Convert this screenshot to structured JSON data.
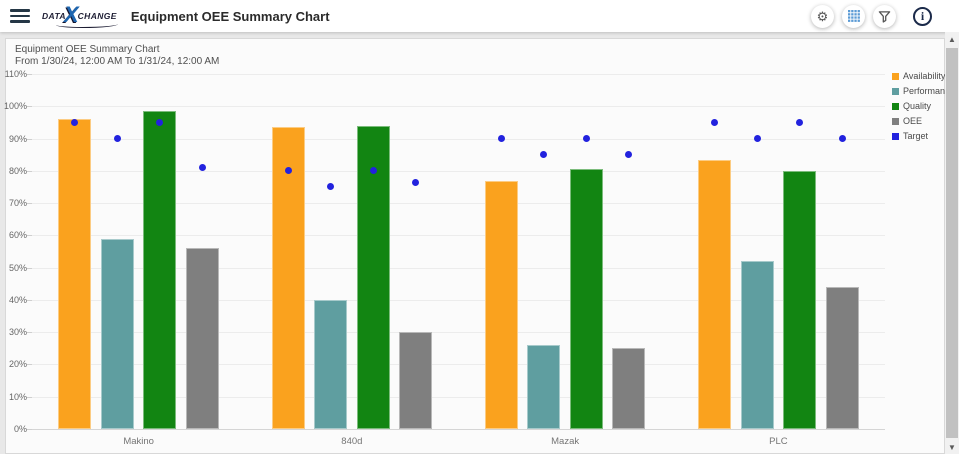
{
  "header": {
    "title": "Equipment OEE Summary Chart",
    "logo": {
      "prefix": "DATA",
      "x": "X",
      "suffix": "CHANGE"
    },
    "icons": {
      "menu": "hamburger-menu",
      "settings": "gear-icon",
      "grid": "grid-view-icon",
      "filter": "funnel-icon",
      "info": "info-icon"
    }
  },
  "colors": {
    "accent_blue": "#5B9BD5",
    "navy": "#253746",
    "page_bg": "#E8E8E8"
  },
  "chart_data": {
    "type": "bar",
    "title": "Equipment OEE Summary Chart",
    "subtitle": "From 1/30/24, 12:00 AM To 1/31/24, 12:00 AM",
    "categories": [
      "Makino",
      "840d",
      "Mazak",
      "PLC"
    ],
    "series": [
      {
        "name": "Availability",
        "color": "#FAA21E",
        "values": [
          96,
          93.5,
          77,
          83.5
        ],
        "targets": [
          95,
          80,
          90,
          95
        ]
      },
      {
        "name": "Performance",
        "color": "#5F9EA0",
        "values": [
          59,
          40,
          26,
          52
        ],
        "targets": [
          90,
          75,
          85,
          90
        ]
      },
      {
        "name": "Quality",
        "color": "#128512",
        "values": [
          98.5,
          94,
          80.5,
          80
        ],
        "targets": [
          95,
          80,
          90,
          95
        ]
      },
      {
        "name": "OEE",
        "color": "#7F7F7F",
        "values": [
          56,
          30,
          25,
          44
        ],
        "targets": [
          81,
          76.5,
          85,
          90
        ]
      }
    ],
    "target_series": {
      "name": "Target",
      "color": "#2222DE"
    },
    "ylim": [
      0,
      110
    ],
    "ytick_step": 10,
    "ytick_suffix": "%",
    "grid": true,
    "legend_position": "right"
  }
}
